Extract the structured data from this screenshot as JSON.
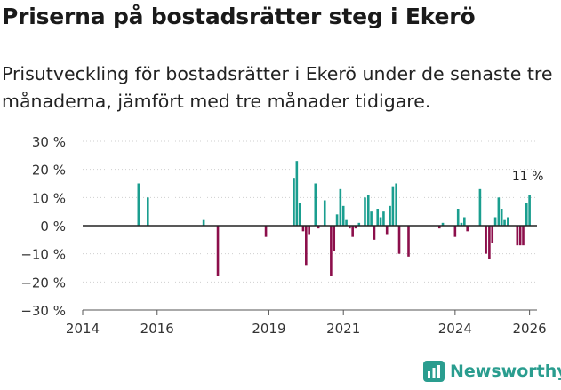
{
  "header": {
    "title": "Priserna på bostadsrätter steg i Ekerö",
    "subtitle": "Prisutveckling för bostadsrätter i Ekerö under de senaste tre månaderna, jämfört med tre månader tidigare."
  },
  "brand": {
    "name": "Newsworthy",
    "color": "#2a9d8f"
  },
  "colors": {
    "positive": "#1a9e8f",
    "negative": "#8c0f4b",
    "zero_line": "#222222",
    "grid": "#cfcfcf"
  },
  "chart_data": {
    "type": "bar",
    "title": "Priserna på bostadsrätter steg i Ekerö",
    "xlabel": "",
    "ylabel": "",
    "ylim": [
      -30,
      30
    ],
    "yticks": [
      -30,
      -20,
      -10,
      0,
      10,
      20,
      30
    ],
    "ytick_labels": [
      "−30 %",
      "−20 %",
      "−10 %",
      "0 %",
      "10 %",
      "20 %",
      "30 %"
    ],
    "xlim": [
      2014,
      2026.2
    ],
    "xticks": [
      2014,
      2016,
      2019,
      2021,
      2024,
      2026
    ],
    "xtick_labels": [
      "2014",
      "2016",
      "2019",
      "2021",
      "2024",
      "2026"
    ],
    "annotation": {
      "text": "11 %",
      "x": 2026.0,
      "y": 11
    },
    "x": [
      2015.5,
      2015.75,
      2017.25,
      2017.63,
      2018.92,
      2019.67,
      2019.75,
      2019.83,
      2019.92,
      2020.0,
      2020.08,
      2020.25,
      2020.33,
      2020.5,
      2020.67,
      2020.75,
      2020.83,
      2020.92,
      2021.0,
      2021.08,
      2021.17,
      2021.25,
      2021.33,
      2021.42,
      2021.58,
      2021.67,
      2021.75,
      2021.83,
      2021.92,
      2022.0,
      2022.08,
      2022.17,
      2022.25,
      2022.33,
      2022.42,
      2022.5,
      2022.58,
      2022.75,
      2023.0,
      2023.58,
      2023.67,
      2023.92,
      2024.0,
      2024.08,
      2024.17,
      2024.25,
      2024.33,
      2024.67,
      2024.83,
      2024.92,
      2025.0,
      2025.08,
      2025.17,
      2025.25,
      2025.33,
      2025.42,
      2025.5,
      2025.58,
      2025.67,
      2025.75,
      2025.83,
      2025.92,
      2026.0
    ],
    "values": [
      15,
      10,
      2,
      -18,
      -4,
      17,
      23,
      8,
      -2,
      -14,
      -3,
      15,
      -1,
      9,
      -18,
      -9,
      4,
      13,
      7,
      2,
      -1,
      -4,
      -1,
      1,
      10,
      11,
      5,
      -5,
      6,
      3,
      5,
      -3,
      7,
      14,
      15,
      -10,
      0,
      -11,
      0,
      -1,
      1,
      0,
      -4,
      6,
      1,
      3,
      -2,
      13,
      -10,
      -12,
      -6,
      3,
      10,
      6,
      2,
      3,
      0,
      0,
      -7,
      -7,
      -7,
      8,
      11
    ]
  }
}
